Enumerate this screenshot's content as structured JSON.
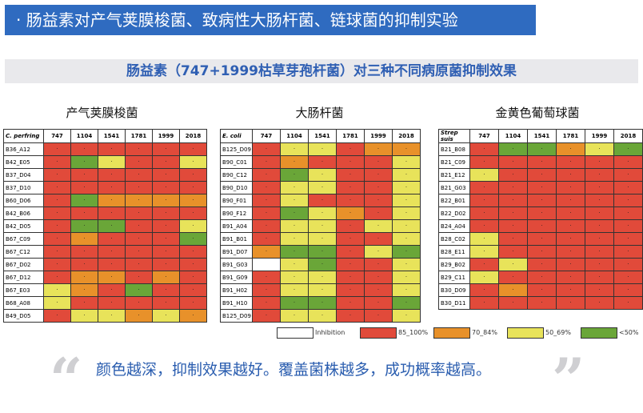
{
  "title": "· 肠益素对产气荚膜梭菌、致病性大肠杆菌、链球菌的抑制实验",
  "subtitle": "肠益素（747+1999枯草芽孢杆菌）对三种不同病原菌抑制效果",
  "columns": [
    "747",
    "1104",
    "1541",
    "1781",
    "1999",
    "2018"
  ],
  "panels": [
    {
      "title": "产气荚膜梭菌",
      "corner_label": "C. perfring",
      "rows": [
        {
          "label": "B36_A12",
          "cells": [
            "red",
            "red",
            "red",
            "red",
            "red",
            "red"
          ]
        },
        {
          "label": "B42_E05",
          "cells": [
            "red",
            "green",
            "yellow",
            "red",
            "red",
            "yellow"
          ]
        },
        {
          "label": "B37_D04",
          "cells": [
            "red",
            "red",
            "red",
            "red",
            "red",
            "red"
          ]
        },
        {
          "label": "B37_D10",
          "cells": [
            "red",
            "red",
            "red",
            "red",
            "red",
            "red"
          ]
        },
        {
          "label": "B60_D06",
          "cells": [
            "red",
            "green",
            "orange",
            "orange",
            "orange",
            "orange"
          ]
        },
        {
          "label": "B42_B06",
          "cells": [
            "red",
            "red",
            "red",
            "red",
            "red",
            "red"
          ]
        },
        {
          "label": "B42_D05",
          "cells": [
            "red",
            "green",
            "green",
            "red",
            "red",
            "yellow"
          ]
        },
        {
          "label": "B67_C09",
          "cells": [
            "red",
            "orange",
            "red",
            "red",
            "red",
            "green"
          ]
        },
        {
          "label": "B67_C12",
          "cells": [
            "red",
            "red",
            "red",
            "red",
            "red",
            "red"
          ]
        },
        {
          "label": "B67_D02",
          "cells": [
            "red",
            "red",
            "red",
            "red",
            "red",
            "red"
          ]
        },
        {
          "label": "B67_D12",
          "cells": [
            "red",
            "orange",
            "orange",
            "red",
            "orange",
            "red"
          ]
        },
        {
          "label": "B67_E03",
          "cells": [
            "yellow",
            "orange",
            "red",
            "green",
            "red",
            "red"
          ]
        },
        {
          "label": "B68_A08",
          "cells": [
            "yellow",
            "red",
            "red",
            "red",
            "red",
            "red"
          ]
        },
        {
          "label": "B49_D05",
          "cells": [
            "red",
            "yellow",
            "yellow",
            "orange",
            "yellow",
            "orange"
          ]
        }
      ]
    },
    {
      "title": "大肠杆菌",
      "corner_label": "E. coli",
      "rows": [
        {
          "label": "B125_D09",
          "cells": [
            "red",
            "yellow",
            "yellow",
            "red",
            "orange",
            "orange"
          ]
        },
        {
          "label": "B90_C01",
          "cells": [
            "red",
            "orange",
            "red",
            "red",
            "red",
            "yellow"
          ]
        },
        {
          "label": "B90_C12",
          "cells": [
            "red",
            "green",
            "yellow",
            "red",
            "red",
            "yellow"
          ]
        },
        {
          "label": "B90_D10",
          "cells": [
            "red",
            "yellow",
            "yellow",
            "red",
            "red",
            "yellow"
          ]
        },
        {
          "label": "B90_F01",
          "cells": [
            "red",
            "yellow",
            "red",
            "red",
            "red",
            "yellow"
          ]
        },
        {
          "label": "B90_F12",
          "cells": [
            "red",
            "green",
            "yellow",
            "orange",
            "red",
            "yellow"
          ]
        },
        {
          "label": "B91_A04",
          "cells": [
            "red",
            "yellow",
            "yellow",
            "red",
            "yellow",
            "yellow"
          ]
        },
        {
          "label": "B91_B01",
          "cells": [
            "red",
            "yellow",
            "yellow",
            "red",
            "red",
            "yellow"
          ]
        },
        {
          "label": "B91_D07",
          "cells": [
            "orange",
            "green",
            "green",
            "red",
            "yellow",
            "green"
          ]
        },
        {
          "label": "B91_G03",
          "cells": [
            "white",
            "yellow",
            "green",
            "red",
            "red",
            "yellow"
          ]
        },
        {
          "label": "B91_G09",
          "cells": [
            "red",
            "yellow",
            "yellow",
            "red",
            "red",
            "yellow"
          ]
        },
        {
          "label": "B91_H02",
          "cells": [
            "red",
            "yellow",
            "yellow",
            "red",
            "red",
            "yellow"
          ]
        },
        {
          "label": "B91_H10",
          "cells": [
            "red",
            "green",
            "green",
            "red",
            "red",
            "green"
          ]
        },
        {
          "label": "B125_D09",
          "cells": [
            "red",
            "yellow",
            "yellow",
            "red",
            "red",
            "yellow"
          ]
        }
      ]
    },
    {
      "title": "金黄色葡萄球菌",
      "corner_label": "Strep suis",
      "rows": [
        {
          "label": "B21_B08",
          "cells": [
            "red",
            "green",
            "green",
            "orange",
            "yellow",
            "green"
          ]
        },
        {
          "label": "B21_C09",
          "cells": [
            "red",
            "red",
            "red",
            "red",
            "red",
            "red"
          ]
        },
        {
          "label": "B21_E12",
          "cells": [
            "yellow",
            "red",
            "red",
            "red",
            "red",
            "red"
          ]
        },
        {
          "label": "B21_G03",
          "cells": [
            "red",
            "red",
            "red",
            "red",
            "red",
            "red"
          ]
        },
        {
          "label": "B22_B01",
          "cells": [
            "red",
            "red",
            "red",
            "red",
            "red",
            "red"
          ]
        },
        {
          "label": "B22_D02",
          "cells": [
            "red",
            "red",
            "red",
            "red",
            "red",
            "red"
          ]
        },
        {
          "label": "B24_A04",
          "cells": [
            "red",
            "red",
            "red",
            "red",
            "red",
            "red"
          ]
        },
        {
          "label": "B28_C02",
          "cells": [
            "yellow",
            "red",
            "red",
            "red",
            "red",
            "red"
          ]
        },
        {
          "label": "B28_E11",
          "cells": [
            "yellow",
            "red",
            "red",
            "red",
            "red",
            "red"
          ]
        },
        {
          "label": "B29_B02",
          "cells": [
            "red",
            "yellow",
            "red",
            "red",
            "red",
            "red"
          ]
        },
        {
          "label": "B29_C11",
          "cells": [
            "yellow",
            "red",
            "red",
            "red",
            "red",
            "red"
          ]
        },
        {
          "label": "B30_D09",
          "cells": [
            "red",
            "orange",
            "red",
            "red",
            "red",
            "red"
          ]
        },
        {
          "label": "B30_D11",
          "cells": [
            "red",
            "red",
            "red",
            "red",
            "red",
            "red"
          ]
        }
      ]
    }
  ],
  "cell_marker": "·",
  "colors": {
    "red": "#e14a3a",
    "orange": "#e8912a",
    "yellow": "#e8e35a",
    "green": "#6aa638",
    "white": "#ffffff",
    "title_bg": "#2f6bc0",
    "subtitle_text": "#2f5fb3"
  },
  "legend": [
    {
      "color": "white",
      "label": "Inhibition"
    },
    {
      "color": "red",
      "label": "85_100%"
    },
    {
      "color": "orange",
      "label": "70_84%"
    },
    {
      "color": "yellow",
      "label": "50_69%"
    },
    {
      "color": "green",
      "label": "<50%"
    }
  ],
  "footer": {
    "open_quote": "“",
    "close_quote": "”",
    "text": "颜色越深，抑制效果越好。覆盖菌株越多，成功概率越高。"
  }
}
